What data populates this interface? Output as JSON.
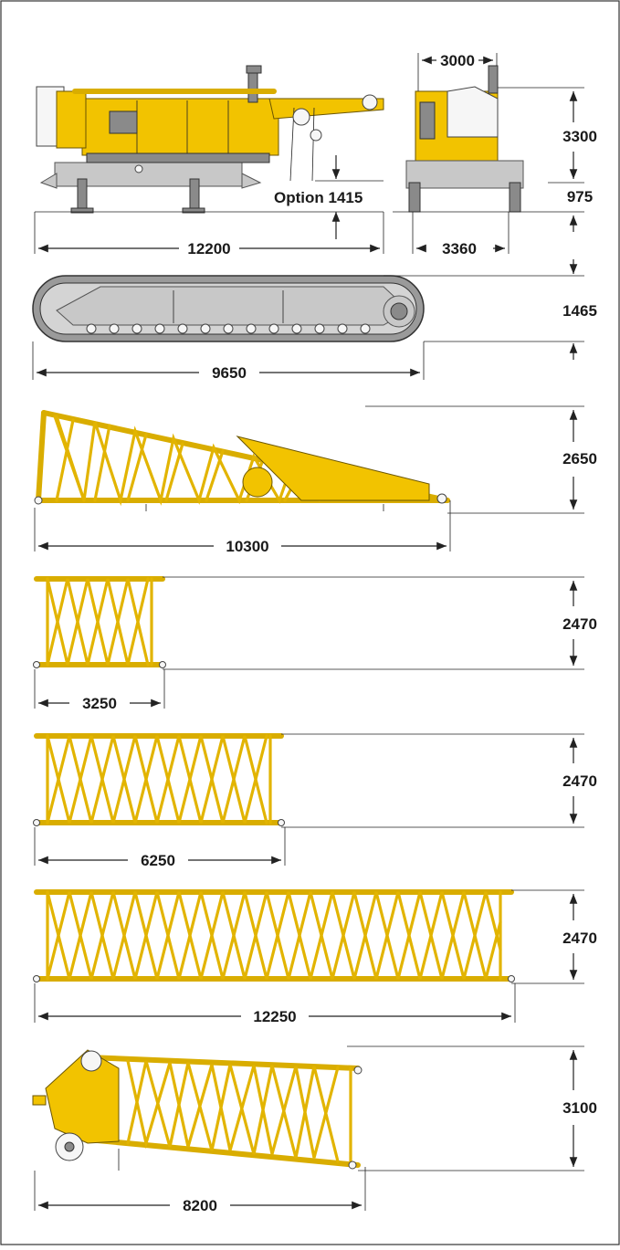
{
  "labels": {
    "base_length": "12200",
    "base_height": "3300",
    "base_width": "3000",
    "crawler_gauge": "3360",
    "ground_clearance": "975",
    "option": "Option 1415",
    "crawler_length": "9650",
    "crawler_height": "1465",
    "boom_foot_length": "10300",
    "boom_foot_height": "2650",
    "insert_3m_length": "3250",
    "insert_3m_height": "2470",
    "insert_6m_length": "6250",
    "insert_6m_height": "2470",
    "insert_12m_length": "12250",
    "insert_12m_height": "2470",
    "boom_head_length": "8200",
    "boom_head_height": "3100"
  },
  "colors": {
    "machine_yellow": "#f2c300",
    "steel_gray": "#c8c8c8",
    "dimension_ink": "#222222"
  }
}
